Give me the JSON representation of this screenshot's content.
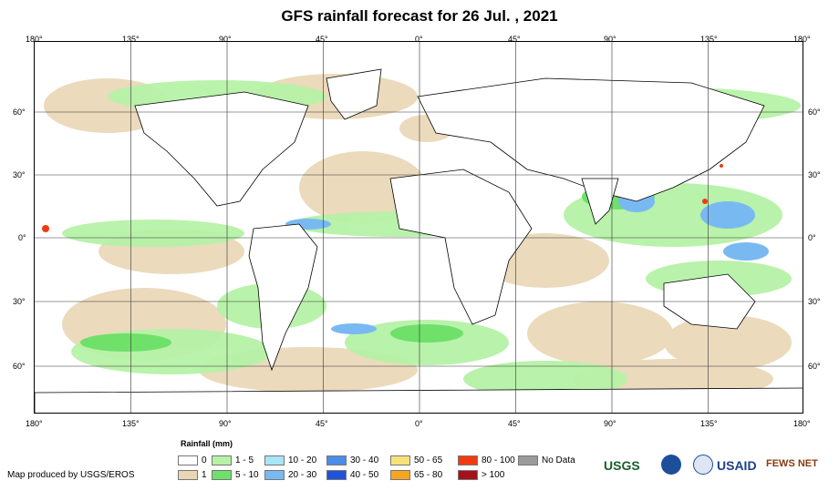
{
  "title": "GFS rainfall forecast for 26 Jul. , 2021",
  "lon_labels": [
    "180°",
    "135°",
    "90°",
    "45°",
    "0°",
    "45°",
    "90°",
    "135°",
    "180°"
  ],
  "lat_labels": [
    "60°",
    "30°",
    "0°",
    "30°",
    "60°"
  ],
  "legend": {
    "title": "Rainfall (mm)",
    "items": [
      {
        "label": "0",
        "color": "#ffffff"
      },
      {
        "label": "1",
        "color": "#e9d6b5"
      },
      {
        "label": "1 - 5",
        "color": "#b6f2a6"
      },
      {
        "label": "5 - 10",
        "color": "#6fe06a"
      },
      {
        "label": "10 - 20",
        "color": "#a9e4f7"
      },
      {
        "label": "20 - 30",
        "color": "#79b9f2"
      },
      {
        "label": "30 - 40",
        "color": "#4a8de6"
      },
      {
        "label": "40 - 50",
        "color": "#1f53d8"
      },
      {
        "label": "50 - 65",
        "color": "#f7e27a"
      },
      {
        "label": "65 - 80",
        "color": "#f4a623"
      },
      {
        "label": "80 - 100",
        "color": "#f23a12"
      },
      {
        "label": "> 100",
        "color": "#a3121a"
      },
      {
        "label": "No Data",
        "color": "#9a9a9a"
      }
    ]
  },
  "credit": "Map produced by USGS/EROS",
  "logos": [
    "USGS",
    "USAID",
    "FEWS NET"
  ]
}
